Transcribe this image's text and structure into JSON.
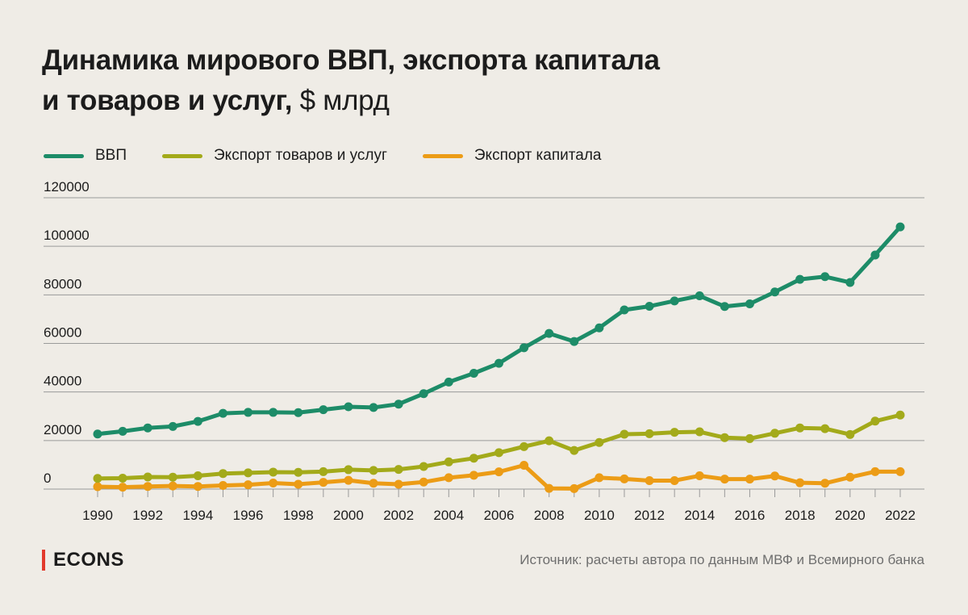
{
  "header": {
    "title_line1": "Динамика мирового ВВП, экспорта капитала",
    "title_line2_bold": "и товаров и услуг,",
    "title_line2_unit": "$ млрд"
  },
  "colors": {
    "background": "#efece6",
    "gdp": "#1d8c68",
    "exports": "#a3aa1a",
    "capital": "#ec9c16",
    "logo_accent": "#e23a2c",
    "grid": "#9a9a9a"
  },
  "footer": {
    "logo": "ECONS",
    "source": "Источник: расчеты автора по данным МВФ и Всемирного банка"
  },
  "chart_data": {
    "type": "line",
    "title": "Динамика мирового ВВП, экспорта капитала и товаров и услуг, $ млрд",
    "xlabel": "",
    "ylabel": "",
    "ylim": [
      0,
      120000
    ],
    "yticks": [
      0,
      20000,
      40000,
      60000,
      80000,
      100000,
      120000
    ],
    "ytick_labels": [
      "0",
      "20000",
      "40000",
      "60000",
      "80000",
      "100000",
      "120000"
    ],
    "xticks": [
      1990,
      1992,
      1994,
      1996,
      1998,
      2000,
      2002,
      2004,
      2006,
      2008,
      2010,
      2012,
      2014,
      2016,
      2018,
      2020,
      2022
    ],
    "xtick_labels": [
      "1990",
      "1992",
      "1994",
      "1996",
      "1998",
      "2000",
      "2002",
      "2004",
      "2006",
      "2008",
      "2010",
      "2012",
      "2014",
      "2016",
      "2018",
      "2020",
      "2022"
    ],
    "grid": true,
    "legend_position": "top-left",
    "x": [
      1990,
      1991,
      1992,
      1993,
      1994,
      1995,
      1996,
      1997,
      1998,
      1999,
      2000,
      2001,
      2002,
      2003,
      2004,
      2005,
      2006,
      2007,
      2008,
      2009,
      2010,
      2011,
      2012,
      2013,
      2014,
      2015,
      2016,
      2017,
      2018,
      2019,
      2020,
      2021,
      2022
    ],
    "series": [
      {
        "name": "ВВП",
        "color": "#1d8c68",
        "values": [
          22700,
          23800,
          25200,
          25800,
          27900,
          31200,
          31600,
          31600,
          31500,
          32700,
          33900,
          33600,
          35000,
          39300,
          44100,
          47700,
          51800,
          58200,
          64100,
          60800,
          66400,
          73800,
          75300,
          77500,
          79600,
          75200,
          76300,
          81200,
          86400,
          87500,
          85100,
          96400,
          108000
        ]
      },
      {
        "name": "Экспорт товаров и услуг",
        "color": "#a3aa1a",
        "values": [
          4400,
          4500,
          5000,
          4900,
          5500,
          6400,
          6700,
          7000,
          6900,
          7200,
          8000,
          7700,
          8100,
          9300,
          11200,
          12700,
          15000,
          17500,
          19900,
          15900,
          19200,
          22600,
          22800,
          23400,
          23600,
          21200,
          20800,
          23000,
          25200,
          24900,
          22500,
          28000,
          30500
        ]
      },
      {
        "name": "Экспорт капитала",
        "color": "#ec9c16",
        "values": [
          1000,
          800,
          1100,
          1300,
          1100,
          1500,
          1800,
          2500,
          2000,
          2800,
          3600,
          2400,
          2000,
          2900,
          4700,
          5700,
          7100,
          9800,
          300,
          200,
          4700,
          4200,
          3500,
          3500,
          5500,
          4100,
          4100,
          5400,
          2600,
          2400,
          4900,
          7200,
          7200
        ]
      }
    ]
  }
}
